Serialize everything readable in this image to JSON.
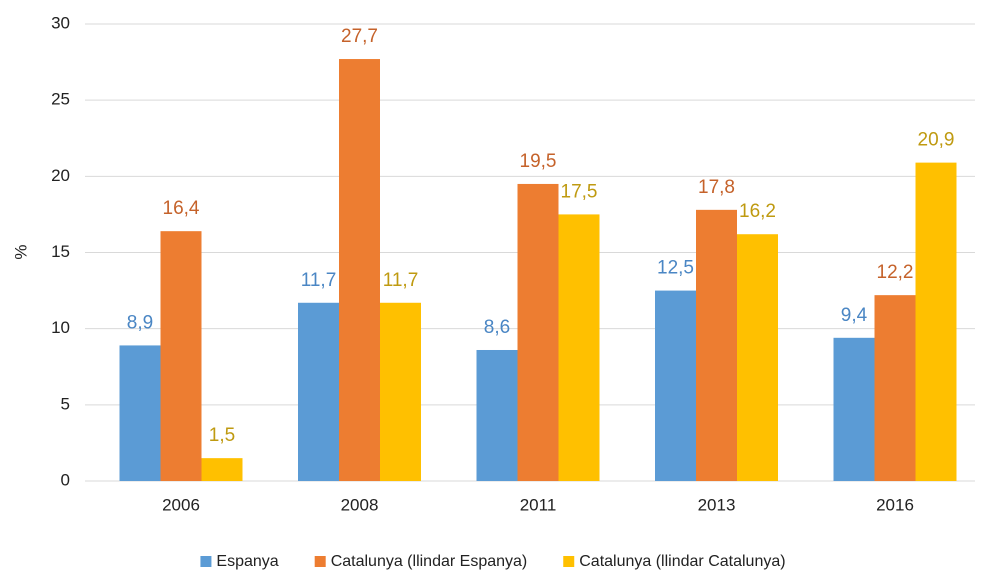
{
  "chart_data": {
    "type": "bar",
    "y_label": "%",
    "categories": [
      "2006",
      "2008",
      "2011",
      "2013",
      "2016"
    ],
    "series": [
      {
        "name": "Espanya",
        "color": "#5b9bd5",
        "label_color": "#4a86c4",
        "values": [
          8.9,
          11.7,
          8.6,
          12.5,
          9.4
        ],
        "value_labels": [
          "8,9",
          "11,7",
          "8,6",
          "12,5",
          "9,4"
        ]
      },
      {
        "name": "Catalunya (llindar Espanya)",
        "color": "#ed7d31",
        "label_color": "#c5622a",
        "values": [
          16.4,
          27.7,
          19.5,
          17.8,
          12.2
        ],
        "value_labels": [
          "16,4",
          "27,7",
          "19,5",
          "17,8",
          "12,2"
        ]
      },
      {
        "name": "Catalunya (llindar Catalunya)",
        "color": "#ffc000",
        "label_color": "#bf9a10",
        "values": [
          1.5,
          11.7,
          17.5,
          16.2,
          20.9
        ],
        "value_labels": [
          "1,5",
          "11,7",
          "17,5",
          "16,2",
          "20,9"
        ]
      }
    ],
    "ylim": [
      0,
      30
    ],
    "yticks": [
      0,
      5,
      10,
      15,
      20,
      25,
      30
    ],
    "grid": true,
    "legend": "bottom"
  }
}
